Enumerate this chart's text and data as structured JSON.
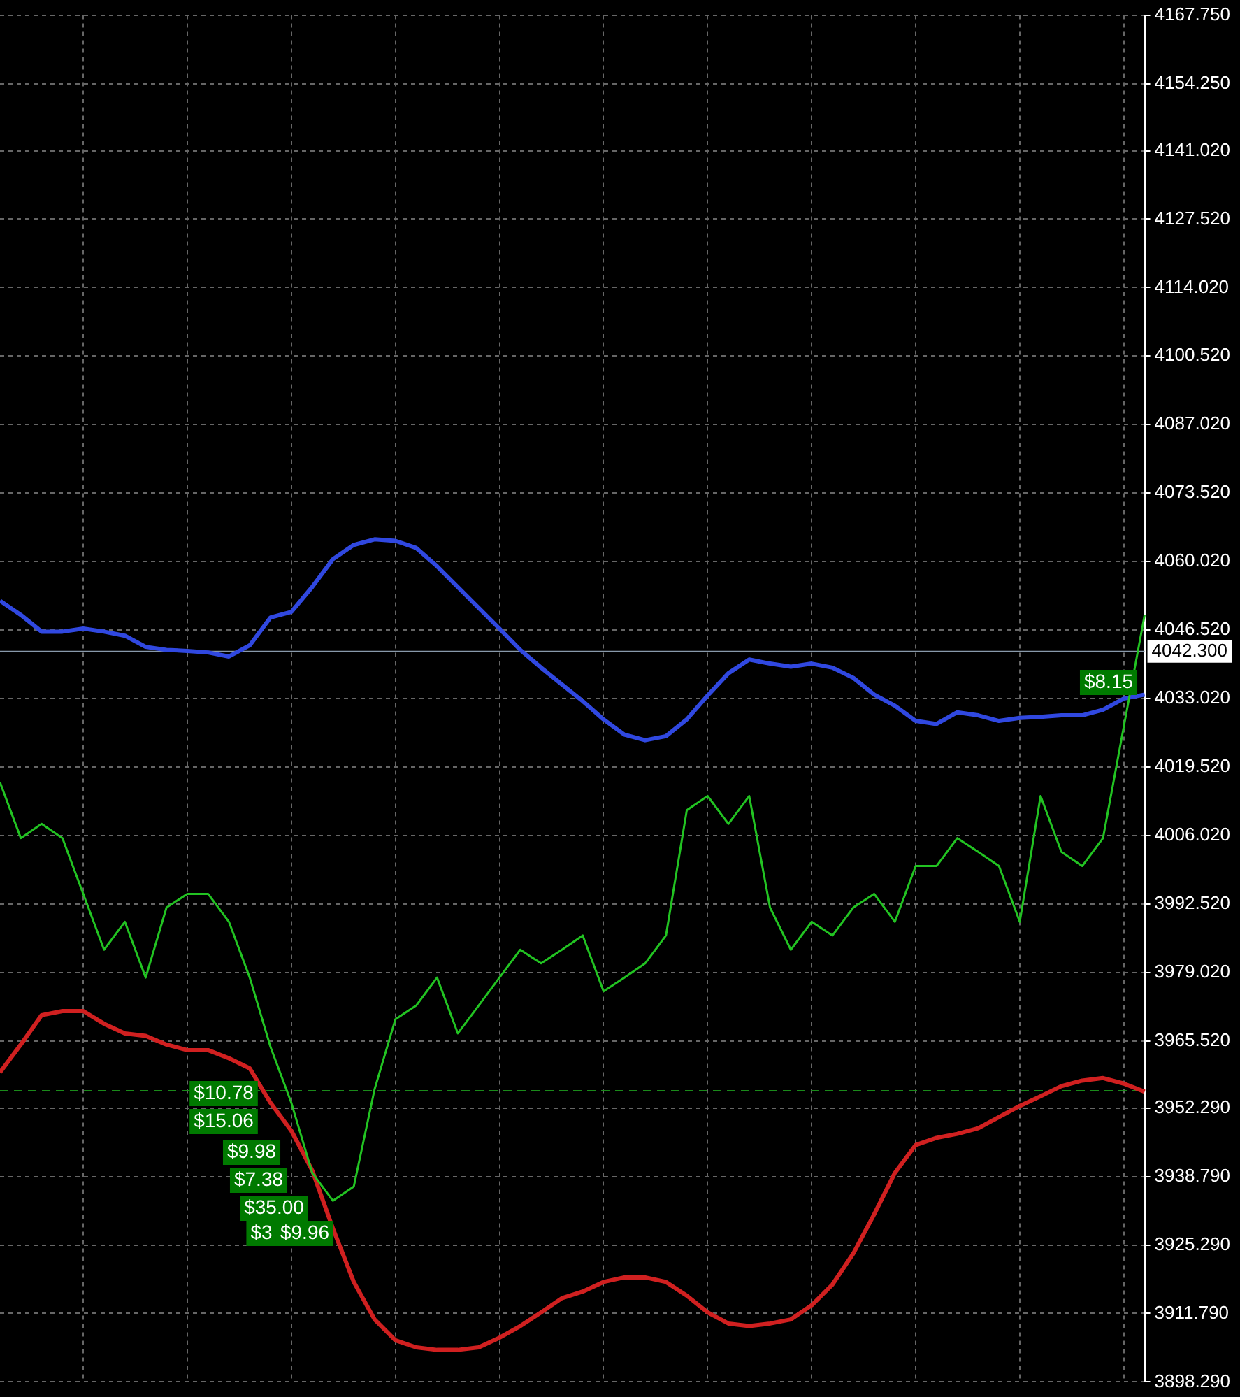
{
  "chart_data": {
    "type": "line",
    "categories": [
      null,
      null,
      null,
      null,
      null,
      null,
      null,
      null,
      null,
      null,
      null,
      null,
      null,
      null,
      null,
      null,
      null,
      null,
      null,
      null,
      null,
      null,
      null,
      null,
      null,
      null,
      null,
      null,
      null,
      null,
      null,
      null,
      null,
      null,
      null,
      null,
      null,
      null,
      null,
      null,
      null,
      null,
      null,
      null,
      null,
      null,
      null,
      null,
      null,
      null,
      null,
      null,
      null,
      null,
      null,
      null
    ],
    "series": [
      {
        "color": "#22c322",
        "values": [
          4016.5,
          4005.5,
          4008.3,
          4005.5,
          3994.5,
          3983.5,
          3989,
          3978,
          3991.8,
          3994.5,
          3994.5,
          3989,
          3978,
          3964.3,
          3953.3,
          3939.5,
          3934,
          3936.8,
          3956,
          3969.8,
          3972.5,
          3978,
          3967,
          3972.5,
          3978,
          3983.5,
          3980.8,
          3983.5,
          3986.3,
          3975.3,
          3978,
          3980.8,
          3986.3,
          4011,
          4013.8,
          4008.3,
          4013.8,
          3991.8,
          3983.5,
          3989,
          3986.3,
          3991.8,
          3994.5,
          3989,
          4000,
          4000,
          4005.5,
          4002.8,
          4000,
          3989,
          4013.8,
          4002.8,
          4000,
          4005.5,
          4027.5,
          4049.5
        ]
      },
      {
        "color": "#3048e0",
        "values": [
          4052.3,
          4049.5,
          4046.2,
          4046.2,
          4046.8,
          4046.2,
          4045.4,
          4043.2,
          4042.6,
          4042.4,
          4042.1,
          4041.3,
          4043.5,
          4049,
          4050.1,
          4055,
          4060.5,
          4063.3,
          4064.4,
          4064.1,
          4062.7,
          4059.1,
          4055,
          4050.9,
          4046.8,
          4042.6,
          4039.1,
          4035.8,
          4032.5,
          4028.9,
          4025.9,
          4024.8,
          4025.6,
          4028.9,
          4033.6,
          4038,
          4040.7,
          4039.9,
          4039.3,
          4039.9,
          4039.1,
          4037.1,
          4033.8,
          4031.6,
          4028.6,
          4028,
          4030.3,
          4029.7,
          4028.6,
          4029.2,
          4029.4,
          4029.7,
          4029.7,
          4030.8,
          4033,
          4033.8
        ]
      },
      {
        "color": "#d02020",
        "values": [
          3959.3,
          3964.8,
          3970.6,
          3971.4,
          3971.4,
          3968.9,
          3967,
          3966.5,
          3964.8,
          3963.7,
          3963.7,
          3962.1,
          3960.1,
          3953.3,
          3947.8,
          3940,
          3928.5,
          3918,
          3910.6,
          3906.5,
          3905.1,
          3904.6,
          3904.6,
          3905.1,
          3907,
          3909.3,
          3912,
          3914.8,
          3916.1,
          3918,
          3918.9,
          3918.9,
          3918,
          3915.3,
          3912,
          3909.8,
          3909.3,
          3909.8,
          3910.6,
          3913.4,
          3917.5,
          3923.6,
          3931.3,
          3939.5,
          3945,
          3946.4,
          3947.2,
          3948.3,
          3950.5,
          3952.7,
          3954.6,
          3956.6,
          3957.7,
          3958.2,
          3957.1,
          3955.5
        ]
      }
    ],
    "ylim": [
      3898.29,
      4167.75
    ],
    "yticks": [
      {
        "value": 4167.75,
        "label": "4167.750"
      },
      {
        "value": 4154.25,
        "label": "4154.250"
      },
      {
        "value": 4141.02,
        "label": "4141.020"
      },
      {
        "value": 4127.52,
        "label": "4127.520"
      },
      {
        "value": 4114.02,
        "label": "4114.020"
      },
      {
        "value": 4100.52,
        "label": "4100.520"
      },
      {
        "value": 4087.02,
        "label": "4087.020"
      },
      {
        "value": 4073.52,
        "label": "4073.520"
      },
      {
        "value": 4060.02,
        "label": "4060.020"
      },
      {
        "value": 4046.52,
        "label": "4046.520"
      },
      {
        "value": 4033.02,
        "label": "4033.020"
      },
      {
        "value": 4019.52,
        "label": "4019.520"
      },
      {
        "value": 4006.02,
        "label": "4006.020"
      },
      {
        "value": 3992.52,
        "label": "3992.520"
      },
      {
        "value": 3979.02,
        "label": "3979.020"
      },
      {
        "value": 3965.52,
        "label": "3965.520"
      },
      {
        "value": 3952.29,
        "label": "3952.290"
      },
      {
        "value": 3938.79,
        "label": "3938.790"
      },
      {
        "value": 3925.29,
        "label": "3925.290"
      },
      {
        "value": 3911.79,
        "label": "3911.790"
      },
      {
        "value": 3898.29,
        "label": "3898.290"
      }
    ],
    "ref_lines": [
      {
        "axis": "y",
        "value": 4042.3,
        "label": "4042.300",
        "color": "#8899aa",
        "line_style": "solid"
      },
      {
        "axis": "y",
        "value": 3955.7,
        "color": "#1a8a1a",
        "line_style": "dashed"
      }
    ],
    "annotations": [
      "$10.78",
      "$15.06",
      "$9.98",
      "$7.38",
      "$35.00",
      "$3",
      "$9.96",
      "$8.15"
    ],
    "grid": true,
    "legend": false,
    "tick_labels": "y",
    "marker": "none",
    "line_style": "solid"
  }
}
